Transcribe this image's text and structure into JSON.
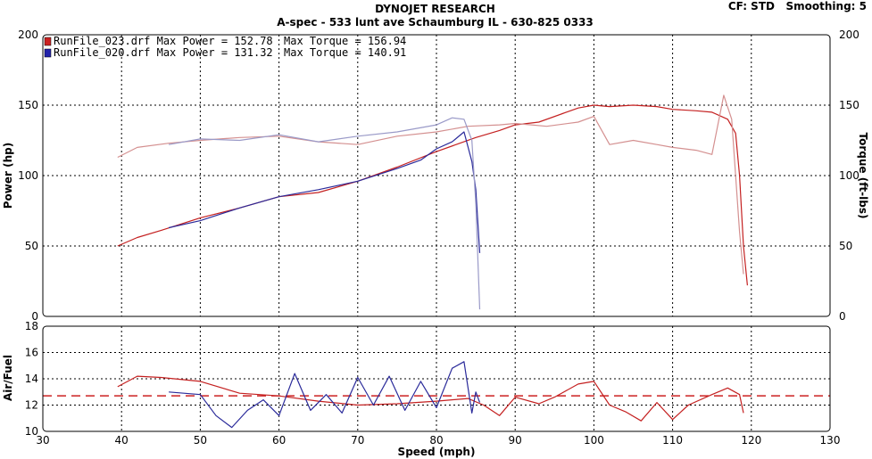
{
  "header": {
    "title": "DYNOJET RESEARCH",
    "subtitle": "A-spec - 533 lunt ave Schaumburg IL - 630-825 0333",
    "settings": "CF: STD   Smoothing: 5"
  },
  "legend": [
    {
      "label": "RunFile_023.drf Max Power = 152.78",
      "torque": "Max Torque = 156.94",
      "color": "#cc2222"
    },
    {
      "label": "RunFile_020.drf Max Power = 131.32",
      "torque": "Max Torque = 140.91",
      "color": "#2222aa"
    }
  ],
  "chart_data": [
    {
      "type": "line",
      "ylabel": "Power (hp)",
      "y2label": "Torque (ft-lbs)",
      "xlim": [
        30,
        130
      ],
      "ylim": [
        0,
        200
      ],
      "y2lim": [
        0,
        200
      ],
      "xticks": [
        30,
        40,
        50,
        60,
        70,
        80,
        90,
        100,
        110,
        120,
        130
      ],
      "yticks": [
        0,
        50,
        100,
        150,
        200
      ],
      "grid": true,
      "series": [
        {
          "name": "RunFile_023.drf",
          "kind": "power",
          "color": "#c42020",
          "x": [
            39.5,
            42,
            45,
            50,
            55,
            60,
            65,
            70,
            75,
            80,
            85,
            88,
            90,
            93,
            96,
            98,
            100,
            102,
            105,
            108,
            110,
            113,
            115,
            117,
            118,
            118.5,
            119,
            119.5
          ],
          "y": [
            50,
            56,
            61,
            70,
            77,
            85,
            88,
            96,
            106,
            117,
            127,
            132,
            136,
            138,
            144,
            148,
            150,
            149,
            150,
            149,
            147,
            146,
            145,
            140,
            130,
            100,
            50,
            22
          ]
        },
        {
          "name": "RunFile_023.drf",
          "kind": "torque",
          "color": "#d49090",
          "x": [
            39.5,
            42,
            46,
            50,
            55,
            60,
            65,
            70,
            75,
            80,
            84,
            88,
            90,
            94,
            98,
            100,
            102,
            105,
            108,
            110,
            113,
            115,
            116.5,
            117.5,
            118.5,
            119
          ],
          "y": [
            113,
            120,
            123,
            125,
            127,
            128,
            124,
            122,
            128,
            131,
            135,
            136,
            137,
            135,
            138,
            142,
            122,
            125,
            122,
            120,
            118,
            115,
            157,
            140,
            60,
            30
          ]
        },
        {
          "name": "RunFile_020.drf",
          "kind": "power",
          "color": "#2a2a9a",
          "x": [
            46,
            50,
            55,
            60,
            65,
            70,
            75,
            78,
            80,
            82,
            83.5,
            84.5,
            85,
            85.5
          ],
          "y": [
            63,
            68,
            77,
            85,
            90,
            96,
            105,
            111,
            119,
            124,
            131,
            110,
            90,
            45
          ]
        },
        {
          "name": "RunFile_020.drf",
          "kind": "torque",
          "color": "#9a9ac8",
          "x": [
            46,
            50,
            55,
            60,
            65,
            70,
            75,
            80,
            82,
            83.5,
            84.5,
            85,
            85.5
          ],
          "y": [
            122,
            126,
            125,
            129,
            124,
            128,
            131,
            136,
            141,
            140,
            125,
            80,
            5
          ]
        }
      ]
    },
    {
      "type": "line",
      "ylabel": "Air/Fuel",
      "xlabel": "Speed (mph)",
      "xlim": [
        30,
        130
      ],
      "ylim": [
        10,
        18
      ],
      "xticks": [
        30,
        40,
        50,
        60,
        70,
        80,
        90,
        100,
        110,
        120,
        130
      ],
      "yticks": [
        10,
        12,
        14,
        16,
        18
      ],
      "grid": true,
      "reference_line": 12.7,
      "series": [
        {
          "name": "RunFile_023.drf",
          "color": "#c42020",
          "x": [
            39.5,
            42,
            45,
            50,
            55,
            60,
            65,
            70,
            75,
            80,
            84,
            86,
            88,
            90,
            93,
            95,
            98,
            100,
            102,
            104,
            106,
            108,
            110,
            112,
            115,
            117,
            118.5,
            119
          ],
          "y": [
            13.4,
            14.2,
            14.1,
            13.8,
            12.9,
            12.7,
            12.3,
            12.0,
            12.1,
            12.3,
            12.5,
            12.0,
            11.2,
            12.6,
            12.1,
            12.6,
            13.6,
            13.8,
            12.0,
            11.5,
            10.8,
            12.2,
            10.9,
            12.0,
            12.8,
            13.3,
            12.8,
            11.4
          ]
        },
        {
          "name": "RunFile_020.drf",
          "color": "#2a2a9a",
          "x": [
            46,
            50,
            52,
            54,
            56,
            58,
            60,
            62,
            64,
            66,
            68,
            70,
            72,
            74,
            76,
            78,
            80,
            82,
            83.5,
            84.5,
            85,
            85.5
          ],
          "y": [
            13.0,
            12.8,
            11.2,
            10.3,
            11.6,
            12.4,
            11.2,
            14.4,
            11.6,
            12.8,
            11.4,
            14.1,
            12.0,
            14.2,
            11.6,
            13.8,
            11.8,
            14.8,
            15.3,
            11.4,
            13.0,
            12.2
          ]
        }
      ]
    }
  ]
}
